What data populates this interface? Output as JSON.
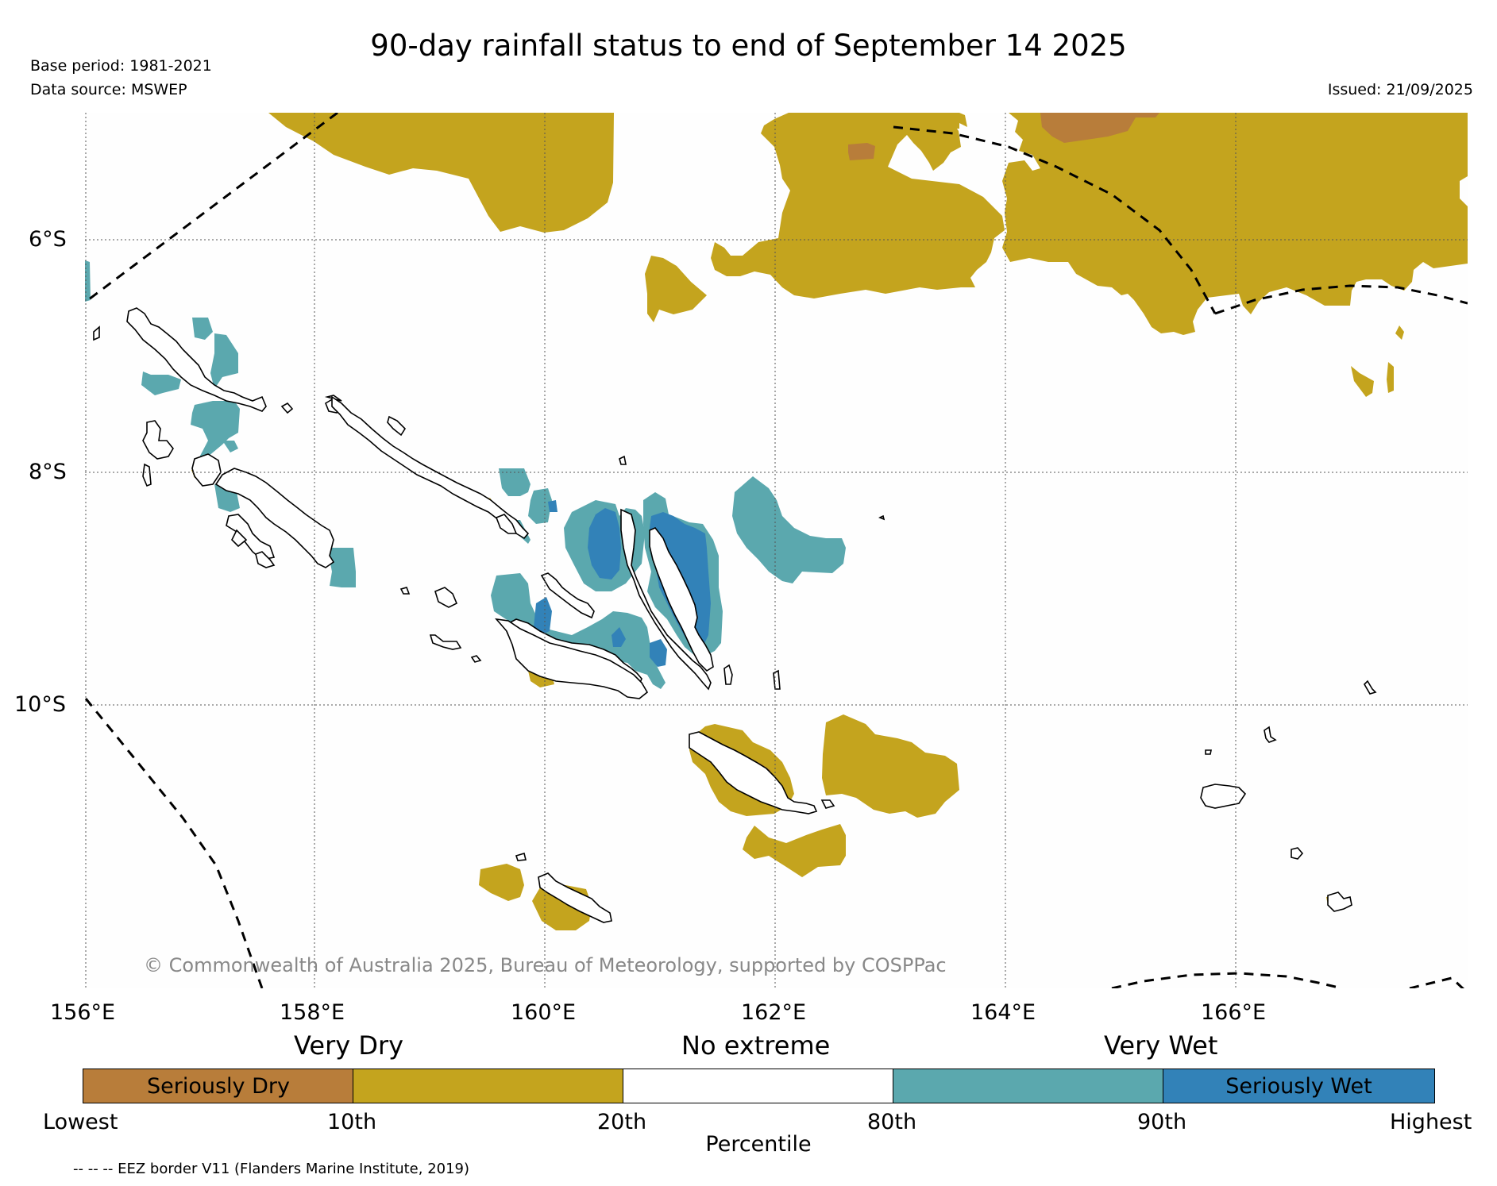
{
  "title": "90-day rainfall status to end of September 14 2025",
  "base_period": "Base period: 1981-2021",
  "data_source": "Data source: MSWEP",
  "issued": "Issued: 21/09/2025",
  "copyright": "© Commonwealth of Australia 2025, Bureau of Meteorology, supported by COSPPac",
  "eez_note": "-- -- -- EEZ border V11 (Flanders Marine Institute, 2019)",
  "axes": {
    "lat_labels": [
      "6°S",
      "8°S",
      "10°S"
    ],
    "lon_labels": [
      "156°E",
      "158°E",
      "160°E",
      "162°E",
      "164°E",
      "166°E"
    ]
  },
  "legend": {
    "categories": [
      "Very Dry",
      "No extreme",
      "Very Wet"
    ],
    "boxes": [
      {
        "label": "Seriously Dry",
        "color": "#b87d3a"
      },
      {
        "label": "",
        "color": "#c4a41e"
      },
      {
        "label": "",
        "color": "#ffffff"
      },
      {
        "label": "",
        "color": "#5ba8ae"
      },
      {
        "label": "Seriously Wet",
        "color": "#3282b8"
      }
    ],
    "percentiles": [
      "Lowest",
      "10th",
      "20th",
      "80th",
      "90th",
      "Highest"
    ],
    "axis_label": "Percentile"
  },
  "colors": {
    "seriously_dry": "#b87d3a",
    "very_dry": "#c4a41e",
    "very_wet": "#5ba8ae",
    "seriously_wet": "#3282b8"
  }
}
